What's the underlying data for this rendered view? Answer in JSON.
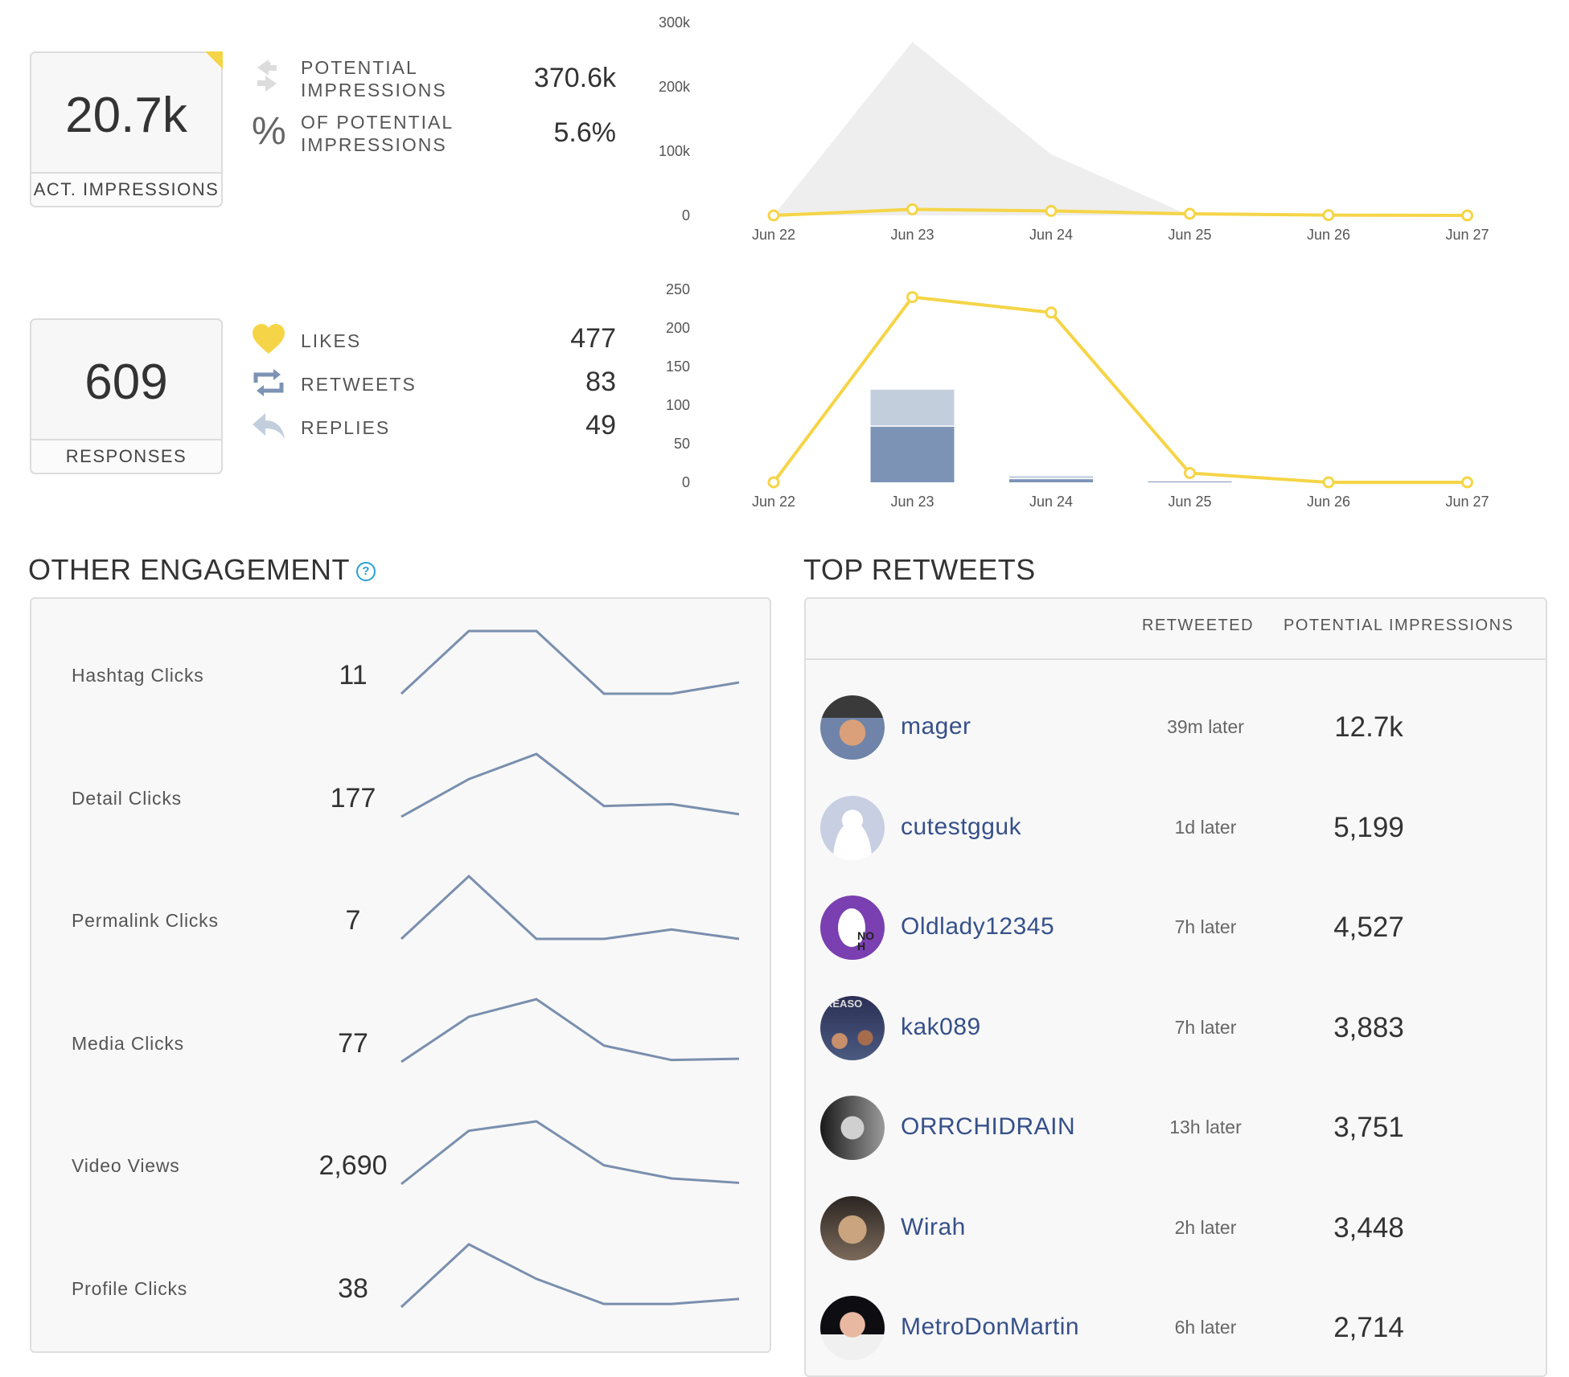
{
  "impressions": {
    "actual_value": "20.7k",
    "actual_label": "ACT. IMPRESSIONS",
    "potential_label_line1": "POTENTIAL",
    "potential_label_line2": "IMPRESSIONS",
    "potential_value": "370.6k",
    "percent_label_line1": "OF POTENTIAL",
    "percent_label_line2": "IMPRESSIONS",
    "percent_value": "5.6%"
  },
  "responses": {
    "value": "609",
    "label": "RESPONSES",
    "likes_label": "LIKES",
    "likes_value": "477",
    "retweets_label": "RETWEETS",
    "retweets_value": "83",
    "replies_label": "REPLIES",
    "replies_value": "49"
  },
  "colors": {
    "accent_yellow": "#f5d547",
    "bar_dark": "#7c93b5",
    "bar_light": "#c3cedd",
    "area_gray": "#eeeeee",
    "spark_line": "#7a8fae",
    "link_blue": "#36508a"
  },
  "chart_data": [
    {
      "type": "area",
      "x": [
        "Jun 22",
        "Jun 23",
        "Jun 24",
        "Jun 25",
        "Jun 26",
        "Jun 27"
      ],
      "yticks": [
        "0",
        "100k",
        "200k",
        "300k"
      ],
      "ylim": [
        0,
        300000
      ],
      "series": [
        {
          "values": [
            0,
            270000,
            95000,
            0,
            0,
            0
          ]
        },
        {
          "values": [
            0,
            9500,
            7000,
            2500,
            500,
            0
          ]
        }
      ]
    },
    {
      "type": "bar",
      "x": [
        "Jun 22",
        "Jun 23",
        "Jun 24",
        "Jun 25",
        "Jun 26",
        "Jun 27"
      ],
      "yticks": [
        "0",
        "50",
        "100",
        "150",
        "200",
        "250"
      ],
      "ylim": [
        0,
        250
      ],
      "series": [
        {
          "values": [
            0,
            240,
            220,
            12,
            0,
            0
          ]
        },
        {
          "values": [
            0,
            72,
            4,
            1,
            0,
            0
          ]
        },
        {
          "values": [
            0,
            48,
            4,
            1,
            0,
            0
          ]
        }
      ]
    }
  ],
  "other_engagement": {
    "title": "OTHER ENGAGEMENT",
    "help_icon": "help-circle-icon",
    "rows": [
      {
        "label": "Hashtag Clicks",
        "value": "11",
        "spark": [
          0,
          1,
          1,
          0,
          0,
          0.18
        ]
      },
      {
        "label": "Detail Clicks",
        "value": "177",
        "spark": [
          0,
          0.6,
          1,
          0.17,
          0.2,
          0.04
        ]
      },
      {
        "label": "Permalink Clicks",
        "value": "7",
        "spark": [
          0,
          1,
          0,
          0,
          0.15,
          0
        ]
      },
      {
        "label": "Media Clicks",
        "value": "77",
        "spark": [
          0,
          0.72,
          1,
          0.26,
          0.03,
          0.05
        ]
      },
      {
        "label": "Video Views",
        "value": "2,690",
        "spark": [
          0,
          0.85,
          1,
          0.3,
          0.09,
          0.02
        ]
      },
      {
        "label": "Profile Clicks",
        "value": "38",
        "spark": [
          0,
          1,
          0.45,
          0.05,
          0.05,
          0.13
        ]
      }
    ]
  },
  "top_retweets": {
    "title": "TOP RETWEETS",
    "col_retweeted": "RETWEETED",
    "col_impressions": "POTENTIAL IMPRESSIONS",
    "rows": [
      {
        "name": "mager",
        "time": "39m later",
        "impressions": "12.7k"
      },
      {
        "name": "cutestgguk",
        "time": "1d later",
        "impressions": "5,199"
      },
      {
        "name": "Oldlady12345",
        "time": "7h later",
        "impressions": "4,527",
        "avatar_text": "NO H"
      },
      {
        "name": "kak089",
        "time": "7h later",
        "impressions": "3,883",
        "avatar_text": "REASO"
      },
      {
        "name": "ORRCHIDRAIN",
        "time": "13h later",
        "impressions": "3,751"
      },
      {
        "name": "Wirah",
        "time": "2h later",
        "impressions": "3,448"
      },
      {
        "name": "MetroDonMartin",
        "time": "6h later",
        "impressions": "2,714"
      }
    ]
  }
}
